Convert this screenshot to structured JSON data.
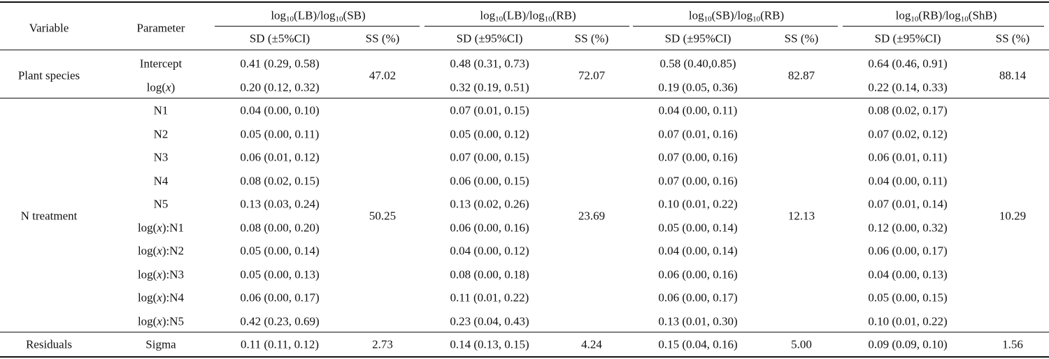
{
  "table": {
    "col_variable": "Variable",
    "col_parameter": "Parameter",
    "groups": [
      {
        "pre": "log",
        "sub1": "10",
        "mid": "(LB)/log",
        "sub2": "10",
        "post": "(SB)",
        "sd_label": "SD (±5%CI)",
        "ss_label": "SS (%)"
      },
      {
        "pre": "log",
        "sub1": "10",
        "mid": "(LB)/log",
        "sub2": "10",
        "post": "(RB)",
        "sd_label": "SD (±95%CI)",
        "ss_label": "SS (%)"
      },
      {
        "pre": "log",
        "sub1": "10",
        "mid": "(SB)/log",
        "sub2": "10",
        "post": "(RB)",
        "sd_label": "SD (±95%CI)",
        "ss_label": "SS (%)"
      },
      {
        "pre": "log",
        "sub1": "10",
        "mid": "(RB)/log",
        "sub2": "10",
        "post": "(ShB)",
        "sd_label": "SD (±95%CI)",
        "ss_label": "SS (%)"
      }
    ],
    "sections": [
      {
        "variable": "Plant species",
        "ss": [
          "47.02",
          "72.07",
          "82.87",
          "88.14"
        ],
        "rows": [
          {
            "param": "Intercept",
            "sd": [
              "0.41 (0.29, 0.58)",
              "0.48 (0.31, 0.73)",
              "0.58 (0.40,0.85)",
              "0.64 (0.46, 0.91)"
            ]
          },
          {
            "param": "log(x)",
            "sd": [
              "0.20 (0.12, 0.32)",
              "0.32 (0.19, 0.51)",
              "0.19 (0.05, 0.36)",
              "0.22 (0.14, 0.33)"
            ]
          }
        ]
      },
      {
        "variable": "N treatment",
        "ss": [
          "50.25",
          "23.69",
          "12.13",
          "10.29"
        ],
        "rows": [
          {
            "param": "N1",
            "sd": [
              "0.04 (0.00, 0.10)",
              "0.07 (0.01, 0.15)",
              "0.04 (0.00, 0.11)",
              "0.08 (0.02, 0.17)"
            ]
          },
          {
            "param": "N2",
            "sd": [
              "0.05 (0.00, 0.11)",
              "0.05 (0.00, 0.12)",
              "0.07 (0.01, 0.16)",
              "0.07 (0.02, 0.12)"
            ]
          },
          {
            "param": "N3",
            "sd": [
              "0.06 (0.01, 0.12)",
              "0.07 (0.00, 0.15)",
              "0.07 (0.00, 0.16)",
              "0.06 (0.01, 0.11)"
            ]
          },
          {
            "param": "N4",
            "sd": [
              "0.08 (0.02, 0.15)",
              "0.06 (0.00, 0.15)",
              "0.07 (0.00, 0.16)",
              "0.04 (0.00, 0.11)"
            ]
          },
          {
            "param": "N5",
            "sd": [
              "0.13 (0.03, 0.24)",
              "0.13 (0.02, 0.26)",
              "0.10 (0.01, 0.22)",
              "0.07 (0.01, 0.14)"
            ]
          },
          {
            "param": "log(x):N1",
            "sd": [
              "0.08 (0.00, 0.20)",
              "0.06 (0.00, 0.16)",
              "0.05 (0.00, 0.14)",
              "0.12 (0.00, 0.32)"
            ]
          },
          {
            "param": "log(x):N2",
            "sd": [
              "0.05 (0.00, 0.14)",
              "0.04 (0.00, 0.12)",
              "0.04 (0.00, 0.14)",
              "0.06 (0.00, 0.17)"
            ]
          },
          {
            "param": "log(x):N3",
            "sd": [
              "0.05 (0.00, 0.13)",
              "0.08 (0.00, 0.18)",
              "0.06 (0.00, 0.16)",
              "0.04 (0.00, 0.13)"
            ]
          },
          {
            "param": "log(x):N4",
            "sd": [
              "0.06 (0.00, 0.17)",
              "0.11 (0.01, 0.22)",
              "0.06 (0.00, 0.17)",
              "0.05 (0.00, 0.15)"
            ]
          },
          {
            "param": "log(x):N5",
            "sd": [
              "0.42 (0.23, 0.69)",
              "0.23 (0.04, 0.43)",
              "0.13 (0.01, 0.30)",
              "0.10 (0.01, 0.22)"
            ]
          }
        ]
      },
      {
        "variable": "Residuals",
        "ss": [
          "2.73",
          "4.24",
          "5.00",
          "1.56"
        ],
        "rows": [
          {
            "param": "Sigma",
            "sd": [
              "0.11 (0.11, 0.12)",
              "0.14 (0.13, 0.15)",
              "0.15 (0.04, 0.16)",
              "0.09 (0.09, 0.10)"
            ]
          }
        ]
      }
    ]
  }
}
